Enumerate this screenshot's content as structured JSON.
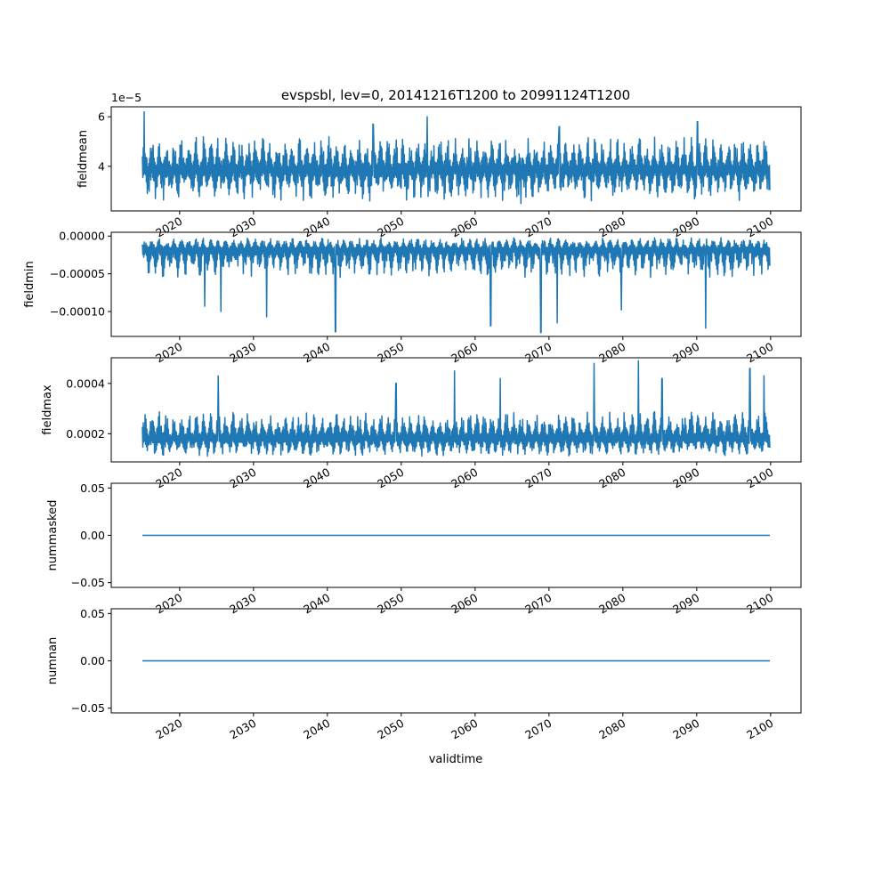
{
  "title": "evspsbl, lev=0, 20141216T1200 to 20991124T1200",
  "xlabel": "validtime",
  "x_ticks": [
    "2020",
    "2030",
    "2040",
    "2050",
    "2060",
    "2070",
    "2080",
    "2090",
    "2100"
  ],
  "line_color": "#1f77b4",
  "chart_data": [
    {
      "type": "line",
      "ylabel": "fieldmean",
      "y_offset_text": "1e−5",
      "y_ticks": [
        "4",
        "6"
      ],
      "y_tick_values": [
        4,
        6
      ],
      "ylim": [
        2.2,
        6.4
      ],
      "x_range": [
        "2014-12-16",
        "2099-11-24"
      ],
      "series": [
        {
          "baseline": 3.85,
          "low": 2.6,
          "high": 5.2,
          "spikes": [
            {
              "x": 2015.2,
              "y": 6.2
            },
            {
              "x": 2046.2,
              "y": 5.7
            },
            {
              "x": 2053.5,
              "y": 6.0
            },
            {
              "x": 2066.2,
              "y": 2.5
            },
            {
              "x": 2071.4,
              "y": 5.6
            },
            {
              "x": 2090.1,
              "y": 5.8
            }
          ]
        }
      ]
    },
    {
      "type": "line",
      "ylabel": "fieldmin",
      "y_ticks": [
        "0.00000",
        "−0.00005",
        "−0.00010"
      ],
      "y_tick_values": [
        0.0,
        -5e-05,
        -0.0001
      ],
      "ylim": [
        -0.000133,
        5e-06
      ],
      "x_range": [
        "2014-12-16",
        "2099-11-24"
      ],
      "series": [
        {
          "baseline": -1.8e-05,
          "low": -5.5e-05,
          "high": -2e-06,
          "spikes": [
            {
              "x": 2041.1,
              "y": -0.000127
            },
            {
              "x": 2031.8,
              "y": -0.000107
            },
            {
              "x": 2025.6,
              "y": -0.0001
            },
            {
              "x": 2062.1,
              "y": -0.000119
            },
            {
              "x": 2068.9,
              "y": -0.000128
            },
            {
              "x": 2071.1,
              "y": -0.000115
            },
            {
              "x": 2091.2,
              "y": -0.000122
            },
            {
              "x": 2023.4,
              "y": -9.3e-05
            },
            {
              "x": 2079.8,
              "y": -9.8e-05
            }
          ]
        }
      ]
    },
    {
      "type": "line",
      "ylabel": "fieldmax",
      "y_ticks": [
        "0.0002",
        "0.0004"
      ],
      "y_tick_values": [
        0.0002,
        0.0004
      ],
      "ylim": [
        8.8e-05,
        0.000502
      ],
      "x_range": [
        "2014-12-16",
        "2099-11-24"
      ],
      "series": [
        {
          "baseline": 0.00018,
          "low": 0.00011,
          "high": 0.00029,
          "spikes": [
            {
              "x": 2025.2,
              "y": 0.00043
            },
            {
              "x": 2057.2,
              "y": 0.00045
            },
            {
              "x": 2076.1,
              "y": 0.00048
            },
            {
              "x": 2082.1,
              "y": 0.00049
            },
            {
              "x": 2097.2,
              "y": 0.00046
            },
            {
              "x": 2099.1,
              "y": 0.00043
            },
            {
              "x": 2049.3,
              "y": 0.0004
            },
            {
              "x": 2063.4,
              "y": 0.00042
            },
            {
              "x": 2085.3,
              "y": 0.00042
            }
          ]
        }
      ]
    },
    {
      "type": "line",
      "ylabel": "nummasked",
      "y_ticks": [
        "0.05",
        "0.00",
        "−0.05"
      ],
      "y_tick_values": [
        0.05,
        0.0,
        -0.05
      ],
      "ylim": [
        -0.055,
        0.055
      ],
      "x_range": [
        "2014-12-16",
        "2099-11-24"
      ],
      "series": [
        {
          "constant": 0.0
        }
      ]
    },
    {
      "type": "line",
      "ylabel": "numnan",
      "y_ticks": [
        "0.05",
        "0.00",
        "−0.05"
      ],
      "y_tick_values": [
        0.05,
        0.0,
        -0.05
      ],
      "ylim": [
        -0.055,
        0.055
      ],
      "x_range": [
        "2014-12-16",
        "2099-11-24"
      ],
      "series": [
        {
          "constant": 0.0
        }
      ]
    }
  ]
}
